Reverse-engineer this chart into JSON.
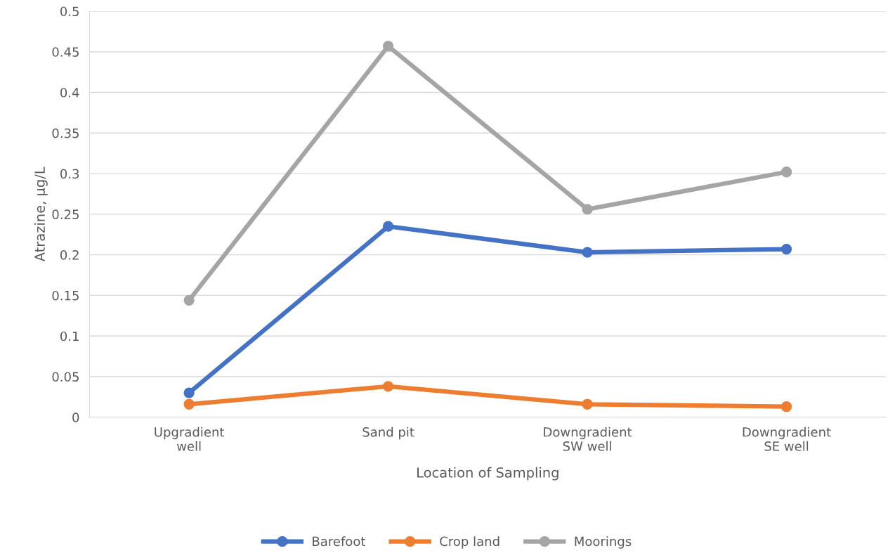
{
  "chart_data": {
    "type": "line",
    "xlabel": "Location of Sampling",
    "ylabel": "Atrazine, µg/L",
    "categories": [
      "Upgradient\nwell",
      "Sand pit",
      "Downgradient\nSW well",
      "Downgradient\nSE well"
    ],
    "series": [
      {
        "name": "Barefoot",
        "color": "#4472c4",
        "values": [
          0.03,
          0.235,
          0.203,
          0.207
        ]
      },
      {
        "name": "Crop land",
        "color": "#ed7d31",
        "values": [
          0.016,
          0.038,
          0.016,
          0.013
        ]
      },
      {
        "name": "Moorings",
        "color": "#a5a5a5",
        "values": [
          0.144,
          0.457,
          0.256,
          0.302
        ]
      }
    ],
    "ylim": [
      0,
      0.5
    ],
    "yticks": [
      {
        "value": 0,
        "label": "0"
      },
      0.05,
      0.1,
      0.15,
      0.2,
      0.25,
      0.3,
      0.35,
      0.4,
      0.45,
      0.5
    ],
    "grid": "y",
    "legend": "bottom",
    "marker": "circle",
    "line_style": "solid"
  }
}
